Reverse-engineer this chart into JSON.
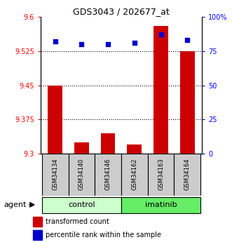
{
  "title": "GDS3043 / 202677_at",
  "samples": [
    "GSM34134",
    "GSM34140",
    "GSM34146",
    "GSM34162",
    "GSM34163",
    "GSM34164"
  ],
  "bar_values": [
    9.45,
    9.325,
    9.345,
    9.32,
    9.58,
    9.525
  ],
  "dot_values": [
    82,
    80,
    80,
    81,
    87,
    83
  ],
  "ylim_left": [
    9.3,
    9.6
  ],
  "ylim_right": [
    0,
    100
  ],
  "yticks_left": [
    9.3,
    9.375,
    9.45,
    9.525,
    9.6
  ],
  "yticks_right": [
    0,
    25,
    50,
    75,
    100
  ],
  "ytick_labels_left": [
    "9.3",
    "9.375",
    "9.45",
    "9.525",
    "9.6"
  ],
  "ytick_labels_right": [
    "0",
    "25",
    "50",
    "75",
    "100%"
  ],
  "bar_color": "#cc0000",
  "dot_color": "#0000cc",
  "bar_bottom": 9.3,
  "control_color": "#ccffcc",
  "imatinib_color": "#66ee66",
  "sample_box_color": "#cccccc",
  "agent_label": "agent",
  "legend_bar_label": "transformed count",
  "legend_dot_label": "percentile rank within the sample",
  "title_fontsize": 9,
  "tick_fontsize": 7,
  "sample_fontsize": 6,
  "group_fontsize": 8,
  "legend_fontsize": 7
}
